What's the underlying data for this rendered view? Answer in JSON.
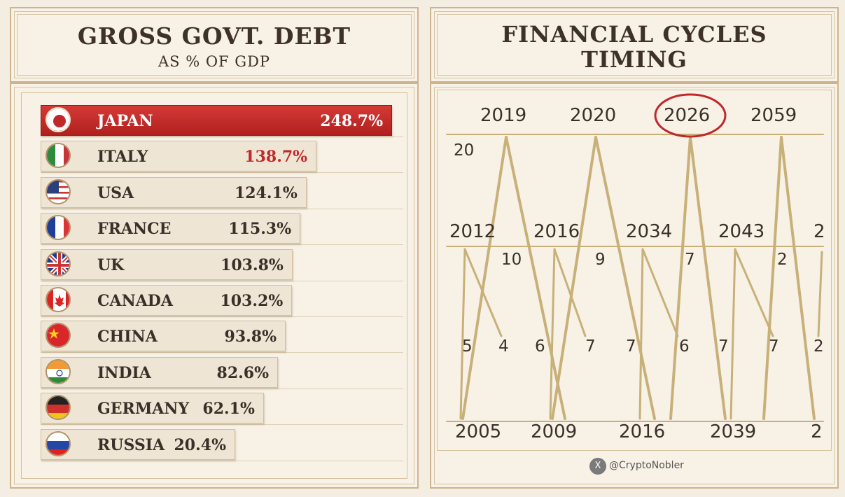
{
  "left_header": {
    "title": "GROSS GOVT. DEBT",
    "subtitle": "AS % OF GDP"
  },
  "right_header": {
    "title_line1": "FINANCIAL CYCLES",
    "title_line2": "TIMING"
  },
  "colors": {
    "accent_red": "#c0282a",
    "gold_line": "#c8b079",
    "frame": "#cdb48e"
  },
  "chart_data": [
    {
      "type": "bar",
      "title": "GROSS GOVT. DEBT",
      "subtitle": "AS % OF GDP",
      "categories": [
        "JAPAN",
        "ITALY",
        "USA",
        "FRANCE",
        "UK",
        "CANADA",
        "CHINA",
        "INDIA",
        "GERMANY",
        "RUSSIA"
      ],
      "values": [
        248.7,
        138.7,
        124.1,
        115.3,
        103.8,
        103.2,
        93.8,
        82.6,
        62.1,
        20.4
      ],
      "labels": [
        "248.7%",
        "138.7%",
        "124.1%",
        "115.3%",
        "103.8%",
        "103.2%",
        "93.8%",
        "82.6%",
        "62.1%",
        "20.4%"
      ],
      "flags": [
        "japan-flag",
        "italy-flag",
        "usa-flag",
        "france-flag",
        "uk-flag",
        "canada-flag",
        "china-flag",
        "india-flag",
        "germany-flag",
        "russia-flag"
      ]
    },
    {
      "type": "table",
      "title": "FINANCIAL CYCLES TIMING",
      "top_years": [
        "2019",
        "2020",
        "2026",
        "2059"
      ],
      "highlighted_year": "2026",
      "middle_years": [
        "2012",
        "2016",
        "2034",
        "2043",
        "2"
      ],
      "bottom_years": [
        "2005",
        "2009",
        "2016",
        "2039",
        "2"
      ],
      "upper_intervals": [
        "20",
        "10",
        "9",
        "7",
        "2"
      ],
      "lower_intervals": [
        "5",
        "4",
        "6",
        "7",
        "7",
        "6",
        "7",
        "7",
        "2"
      ]
    }
  ],
  "credit": {
    "handle": "@CryptoNobler",
    "icon": "x-logo-icon"
  }
}
